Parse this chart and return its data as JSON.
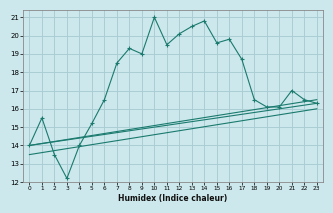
{
  "xlabel": "Humidex (Indice chaleur)",
  "bg_color": "#cce8ec",
  "grid_color": "#aacdd4",
  "line_color": "#1a7a6e",
  "xlim": [
    -0.5,
    23.5
  ],
  "ylim": [
    12,
    21.4
  ],
  "xticks": [
    0,
    1,
    2,
    3,
    4,
    5,
    6,
    7,
    8,
    9,
    10,
    11,
    12,
    13,
    14,
    15,
    16,
    17,
    18,
    19,
    20,
    21,
    22,
    23
  ],
  "yticks": [
    12,
    13,
    14,
    15,
    16,
    17,
    18,
    19,
    20,
    21
  ],
  "series1_x": [
    0,
    1,
    2,
    3,
    4,
    5,
    6,
    7,
    8,
    9,
    10,
    11,
    12,
    13,
    14,
    15,
    16,
    17,
    18,
    19,
    20,
    21,
    22,
    23
  ],
  "series1_y": [
    14.0,
    15.5,
    13.5,
    12.2,
    14.0,
    15.2,
    16.5,
    18.5,
    19.3,
    19.0,
    21.0,
    19.5,
    20.1,
    20.5,
    20.8,
    19.6,
    19.8,
    18.7,
    16.5,
    16.1,
    16.1,
    17.0,
    16.5,
    16.3
  ],
  "series2_x": [
    0,
    23
  ],
  "series2_y": [
    14.0,
    16.3
  ],
  "series3_x": [
    0,
    23
  ],
  "series3_y": [
    14.0,
    16.5
  ],
  "series4_x": [
    0,
    23
  ],
  "series4_y": [
    13.5,
    16.0
  ]
}
